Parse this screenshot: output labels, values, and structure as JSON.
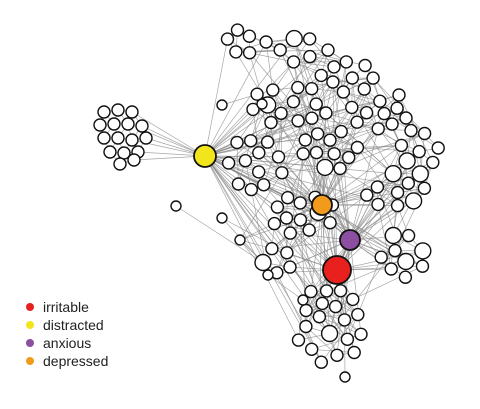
{
  "network": {
    "edge_color": "#8a8a8a",
    "node_fill": "#ffffff",
    "node_stroke": "#111111",
    "highlighted_nodes": [
      {
        "id": "irritable",
        "color": "#e8211e"
      },
      {
        "id": "distracted",
        "color": "#f2e51b"
      },
      {
        "id": "anxious",
        "color": "#8b4ea0"
      },
      {
        "id": "depressed",
        "color": "#f29a1c"
      }
    ]
  },
  "legend": {
    "items": [
      {
        "label": "irritable",
        "color": "#e8211e"
      },
      {
        "label": "distracted",
        "color": "#f2e51b"
      },
      {
        "label": "anxious",
        "color": "#8b4ea0"
      },
      {
        "label": "depressed",
        "color": "#f29a1c"
      }
    ]
  }
}
